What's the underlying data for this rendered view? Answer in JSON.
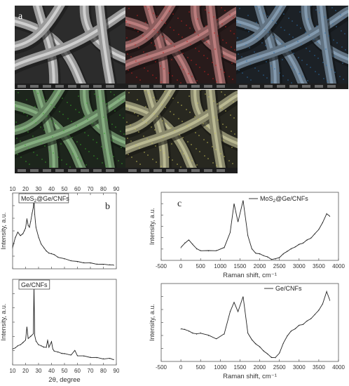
{
  "panels": {
    "a_label": "a",
    "b_label": "b",
    "c_label": "c"
  },
  "sem_images": [
    {
      "tint": "#c8c8c8",
      "overlay": "none"
    },
    {
      "tint": "#c81e1e",
      "overlay": "red"
    },
    {
      "tint": "#2f6fa8",
      "overlay": "blue"
    },
    {
      "tint": "#36a62a",
      "overlay": "green"
    },
    {
      "tint": "#c8c25a",
      "overlay": "yellow"
    }
  ],
  "chart_data": [
    {
      "type": "line",
      "legend": "MoS2@Ge/CNFs",
      "xlim": [
        10,
        90
      ],
      "xticks": [
        10,
        20,
        30,
        40,
        50,
        60,
        70,
        80,
        90
      ],
      "xlabel": "",
      "ylabel": "Intensity, a.u.",
      "x": [
        10,
        12,
        14,
        16,
        18,
        19,
        20,
        21,
        22,
        23,
        24,
        25,
        26,
        26.5,
        27,
        28,
        30,
        32,
        34,
        36,
        38,
        40,
        42,
        45,
        50,
        55,
        60,
        65,
        70,
        75,
        80,
        85,
        88
      ],
      "y": [
        0.3,
        0.45,
        0.52,
        0.48,
        0.5,
        0.55,
        0.58,
        0.72,
        0.62,
        0.6,
        0.68,
        0.8,
        0.88,
        1.0,
        0.78,
        0.6,
        0.45,
        0.36,
        0.3,
        0.26,
        0.22,
        0.22,
        0.2,
        0.17,
        0.14,
        0.12,
        0.1,
        0.09,
        0.08,
        0.07,
        0.06,
        0.06,
        0.05
      ]
    },
    {
      "type": "line",
      "legend": "Ge/CNFs",
      "xlim": [
        10,
        90
      ],
      "xticks": [
        10,
        20,
        30,
        40,
        50,
        60,
        70,
        80,
        90
      ],
      "xlabel": "2θ, degree",
      "ylabel": "Intensity, a.u.",
      "x": [
        10,
        12,
        14,
        16,
        18,
        20,
        21,
        22,
        24,
        26,
        26.5,
        27,
        28,
        30,
        32,
        34,
        36,
        37,
        38,
        40,
        41,
        42,
        45,
        48,
        50,
        55,
        58,
        60,
        65,
        70,
        75,
        80,
        85,
        88
      ],
      "y": [
        0.2,
        0.22,
        0.24,
        0.26,
        0.28,
        0.32,
        0.48,
        0.34,
        0.36,
        0.4,
        1.0,
        0.38,
        0.3,
        0.26,
        0.24,
        0.23,
        0.22,
        0.32,
        0.22,
        0.3,
        0.2,
        0.18,
        0.16,
        0.15,
        0.14,
        0.13,
        0.18,
        0.12,
        0.11,
        0.1,
        0.09,
        0.08,
        0.08,
        0.07
      ]
    },
    {
      "type": "line",
      "legend": "MoS2@Ge/CNFs",
      "xlim": [
        -500,
        4000
      ],
      "xticks": [
        -500,
        0,
        500,
        1000,
        1500,
        2000,
        2500,
        3000,
        3500,
        4000
      ],
      "xlabel": "Raman shift, cm⁻¹",
      "ylabel": "Intensity, a.u.",
      "x": [
        0,
        100,
        200,
        300,
        400,
        500,
        700,
        900,
        1100,
        1250,
        1350,
        1450,
        1580,
        1700,
        1800,
        1900,
        2000,
        2100,
        2200,
        2300,
        2400,
        2500,
        2600,
        2700,
        2800,
        2900,
        3000,
        3100,
        3200,
        3300,
        3400,
        3500,
        3600,
        3700,
        3780
      ],
      "y": [
        0.2,
        0.28,
        0.32,
        0.26,
        0.18,
        0.16,
        0.15,
        0.16,
        0.2,
        0.45,
        0.9,
        0.62,
        0.95,
        0.4,
        0.18,
        0.12,
        0.1,
        0.08,
        0.05,
        0.02,
        0.02,
        0.05,
        0.1,
        0.15,
        0.18,
        0.22,
        0.25,
        0.28,
        0.32,
        0.36,
        0.42,
        0.5,
        0.6,
        0.75,
        0.7
      ]
    },
    {
      "type": "line",
      "legend": "Ge/CNFs",
      "xlim": [
        -500,
        4000
      ],
      "xticks": [
        -500,
        0,
        500,
        1000,
        1500,
        2000,
        2500,
        3000,
        3500,
        4000
      ],
      "xlabel": "Raman shift, cm⁻¹",
      "ylabel": "Intensity, a.u.",
      "x": [
        0,
        100,
        200,
        300,
        400,
        500,
        700,
        900,
        1100,
        1250,
        1350,
        1450,
        1580,
        1700,
        1800,
        1900,
        2000,
        2100,
        2200,
        2300,
        2400,
        2500,
        2600,
        2700,
        2800,
        2900,
        3000,
        3100,
        3200,
        3300,
        3400,
        3500,
        3600,
        3700,
        3780
      ],
      "y": [
        0.45,
        0.45,
        0.42,
        0.4,
        0.38,
        0.4,
        0.36,
        0.32,
        0.38,
        0.7,
        0.82,
        0.7,
        0.9,
        0.4,
        0.3,
        0.25,
        0.2,
        0.15,
        0.1,
        0.06,
        0.05,
        0.12,
        0.25,
        0.36,
        0.42,
        0.46,
        0.5,
        0.52,
        0.56,
        0.6,
        0.65,
        0.72,
        0.8,
        0.98,
        0.85
      ]
    }
  ]
}
